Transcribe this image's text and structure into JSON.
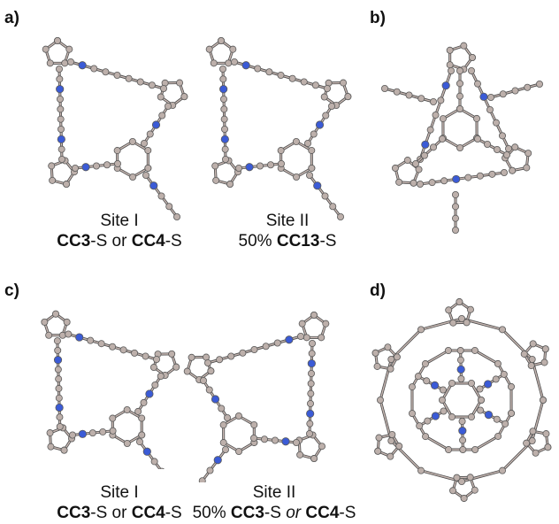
{
  "panels": {
    "a": {
      "letter": "a)",
      "site_i": {
        "title": "Site I",
        "l2_b1": "CC3",
        "l2_i1": "-S",
        "l2_t1": " or ",
        "l2_b2": "CC4",
        "l2_i2": "-S"
      },
      "site_ii": {
        "title": "Site II",
        "l2_t1": "50% ",
        "l2_b1": "CC13",
        "l2_i1": "-S"
      }
    },
    "b": {
      "letter": "b)"
    },
    "c": {
      "letter": "c)",
      "site_i": {
        "title": "Site I",
        "l2_b1": "CC3",
        "l2_i1": "-S",
        "l2_t1": " or ",
        "l2_b2": "CC4",
        "l2_i2": "-S"
      },
      "site_ii": {
        "title": "Site II",
        "l2_t1": "50% ",
        "l2_b1": "CC3",
        "l2_i1": "-S",
        "l2_t2": " or ",
        "l2_b2": "CC4",
        "l2_i2": "-S"
      }
    },
    "d": {
      "letter": "d)"
    }
  },
  "colors": {
    "carbon_atom": "#bdb0ab",
    "nitrogen_atom": "#3b5bd6",
    "bond_dark": "#4a4a4a",
    "bond_light": "#c9b9b4"
  }
}
